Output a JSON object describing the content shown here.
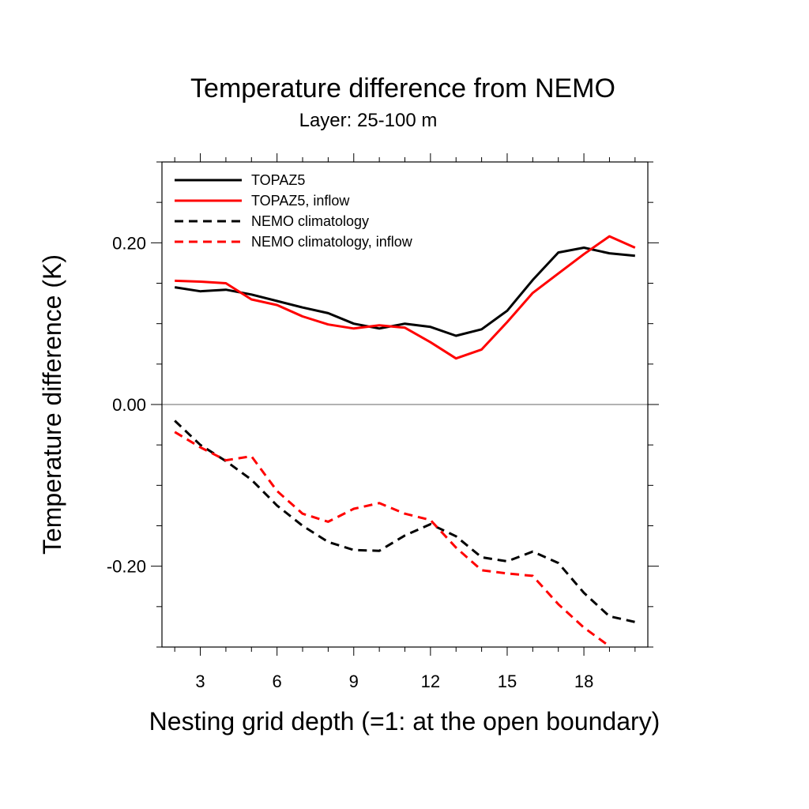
{
  "chart_data": {
    "type": "line",
    "title": "Temperature difference from NEMO",
    "subtitle": "Layer: 25-100 m",
    "xlabel": "Nesting grid depth (=1: at the open boundary)",
    "ylabel": "Temperature difference (K)",
    "xlim": [
      1.5,
      20.5
    ],
    "ylim": [
      -0.3,
      0.3
    ],
    "x_ticks": [
      3,
      6,
      9,
      12,
      15,
      18
    ],
    "x_tick_labels": [
      "3",
      "6",
      "9",
      "12",
      "15",
      "18"
    ],
    "y_ticks": [
      -0.2,
      0.0,
      0.2
    ],
    "y_tick_labels": [
      "-0.20",
      "0.00",
      "0.20"
    ],
    "zero_line": true,
    "grid": false,
    "legend_position": "top-left",
    "x": [
      2,
      3,
      4,
      5,
      6,
      7,
      8,
      9,
      10,
      11,
      12,
      13,
      14,
      15,
      16,
      17,
      18,
      19,
      20
    ],
    "series": [
      {
        "name": "TOPAZ5",
        "color": "#000000",
        "dash": "solid",
        "values": [
          0.145,
          0.14,
          0.142,
          0.136,
          0.128,
          0.12,
          0.113,
          0.1,
          0.094,
          0.1,
          0.096,
          0.085,
          0.093,
          0.116,
          0.154,
          0.188,
          0.194,
          0.187,
          0.184
        ]
      },
      {
        "name": "TOPAZ5, inflow",
        "color": "#ff0000",
        "dash": "solid",
        "values": [
          0.153,
          0.152,
          0.15,
          0.13,
          0.123,
          0.109,
          0.099,
          0.094,
          0.098,
          0.095,
          0.077,
          0.057,
          0.068,
          0.102,
          0.138,
          0.162,
          0.186,
          0.208,
          0.194
        ]
      },
      {
        "name": "NEMO climatology",
        "color": "#000000",
        "dash": "dashed",
        "values": [
          -0.02,
          -0.05,
          -0.07,
          -0.093,
          -0.125,
          -0.15,
          -0.17,
          -0.18,
          -0.181,
          -0.162,
          -0.148,
          -0.163,
          -0.189,
          -0.194,
          -0.182,
          -0.196,
          -0.233,
          -0.262,
          -0.269
        ]
      },
      {
        "name": "NEMO climatology, inflow",
        "color": "#ff0000",
        "dash": "dashed",
        "values": [
          -0.034,
          -0.053,
          -0.069,
          -0.064,
          -0.107,
          -0.135,
          -0.145,
          -0.129,
          -0.122,
          -0.135,
          -0.143,
          -0.177,
          -0.205,
          -0.209,
          -0.212,
          -0.247,
          -0.276,
          -0.299,
          null
        ]
      }
    ]
  }
}
